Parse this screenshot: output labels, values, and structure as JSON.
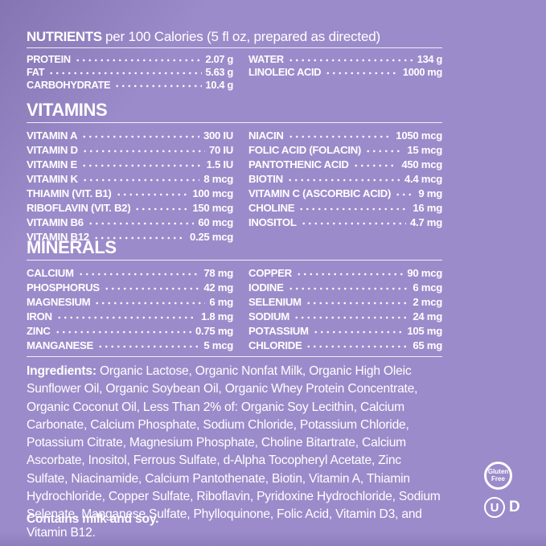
{
  "colors": {
    "panel": "#9c8bca",
    "shadow": "#2c1c54",
    "text": "#ffffff"
  },
  "nutrients": {
    "heading_bold": "NUTRIENTS",
    "heading_rest": "per 100 Calories (5 fl oz, prepared as directed)",
    "left": [
      {
        "label": "PROTEIN",
        "value": "2.07 g"
      },
      {
        "label": "FAT",
        "value": "5.63 g"
      },
      {
        "label": "CARBOHYDRATE",
        "value": "10.4 g"
      }
    ],
    "right": [
      {
        "label": "WATER",
        "value": "134 g"
      },
      {
        "label": "LINOLEIC ACID",
        "value": "1000 mg"
      }
    ]
  },
  "vitamins": {
    "heading": "VITAMINS",
    "left": [
      {
        "label": "VITAMIN A",
        "value": "300 IU"
      },
      {
        "label": "VITAMIN D",
        "value": "70 IU"
      },
      {
        "label": "VITAMIN E",
        "value": "1.5 IU"
      },
      {
        "label": "VITAMIN K",
        "value": "8 mcg"
      },
      {
        "label": "THIAMIN (VIT. B1)",
        "value": "100 mcg"
      },
      {
        "label": "RIBOFLAVIN (VIT. B2)",
        "value": "150 mcg"
      },
      {
        "label": "VITAMIN B6",
        "value": "60 mcg"
      },
      {
        "label": "VITAMIN B12",
        "value": "0.25 mcg"
      }
    ],
    "right": [
      {
        "label": "NIACIN",
        "value": "1050 mcg"
      },
      {
        "label": "FOLIC ACID (FOLACIN)",
        "value": "15 mcg"
      },
      {
        "label": "PANTOTHENIC ACID",
        "value": "450 mcg"
      },
      {
        "label": "BIOTIN",
        "value": "4.4 mcg"
      },
      {
        "label": "VITAMIN C (ASCORBIC ACID)",
        "value": "9 mg"
      },
      {
        "label": "CHOLINE",
        "value": "16 mg"
      },
      {
        "label": "INOSITOL",
        "value": "4.7 mg"
      }
    ]
  },
  "minerals": {
    "heading": "MINERALS",
    "left": [
      {
        "label": "CALCIUM",
        "value": "78 mg"
      },
      {
        "label": "PHOSPHORUS",
        "value": "42 mg"
      },
      {
        "label": "MAGNESIUM",
        "value": "6 mg"
      },
      {
        "label": "IRON",
        "value": "1.8 mg"
      },
      {
        "label": "ZINC",
        "value": "0.75 mg"
      },
      {
        "label": "MANGANESE",
        "value": "5 mcg"
      }
    ],
    "right": [
      {
        "label": "COPPER",
        "value": "90 mcg"
      },
      {
        "label": "IODINE",
        "value": "6 mcg"
      },
      {
        "label": "SELENIUM",
        "value": "2 mcg"
      },
      {
        "label": "SODIUM",
        "value": "24 mg"
      },
      {
        "label": "POTASSIUM",
        "value": "105 mg"
      },
      {
        "label": "CHLORIDE",
        "value": "65 mg"
      }
    ]
  },
  "ingredients": {
    "label": "Ingredients:",
    "text": "Organic Lactose, Organic Nonfat Milk, Organic High Oleic Sunflower Oil, Organic Soybean Oil, Organic Whey Protein Concentrate, Organic Coconut Oil, Less Than 2% of: Organic Soy Lecithin, Calcium Carbonate, Calcium Phosphate, Sodium Chloride, Potassium Chloride, Potassium Citrate, Magnesium Phosphate, Choline Bitartrate, Calcium Ascorbate, Inositol, Ferrous Sulfate, d-Alpha Tocopheryl Acetate, Zinc Sulfate, Niacinamide, Calcium Pantothenate, Biotin, Vitamin A, Thiamin Hydrochloride, Copper Sulfate, Riboflavin, Pyridoxine Hydrochloride, Sodium Selenate, Manganese Sulfate, Phylloquinone, Folic Acid, Vitamin D3, and Vitamin B12."
  },
  "allergen": "Contains milk and soy.",
  "badges": {
    "gluten_line1": "Gluten",
    "gluten_line2": "Free",
    "kosher_u": "U",
    "kosher_d": "D"
  }
}
